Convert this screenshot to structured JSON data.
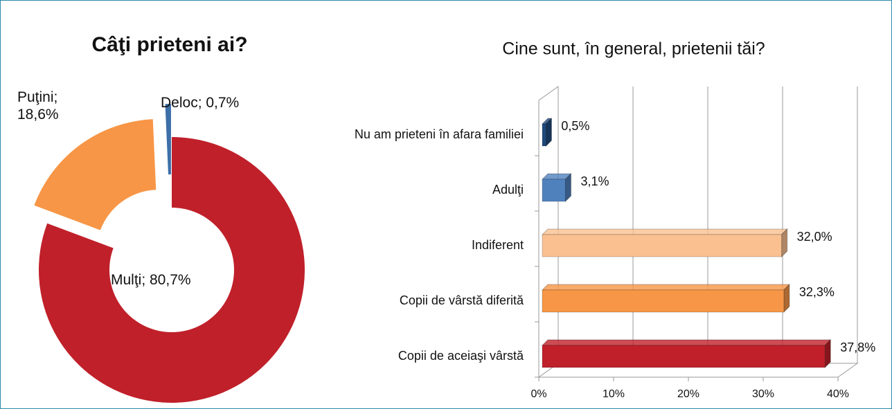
{
  "chart_data": [
    {
      "type": "donut",
      "title": "Câţi prieteni ai?",
      "values": [
        80.7,
        18.6,
        0.7
      ],
      "value_labels": [
        "Mulţi; 80,7%",
        "Puţini; 18,6%",
        "Deloc; 0,7%"
      ],
      "colors": [
        "#c0202a",
        "#f79646",
        "#3d6fa8"
      ]
    },
    {
      "type": "bar3d",
      "title": "Cine sunt, în general, prietenii tăi?",
      "categories": [
        "Nu am prieteni în afara familiei",
        "Adulţi",
        "Indiferent",
        "Copii de vârstă diferită",
        "Copii de aceiaşi vârstă"
      ],
      "values": [
        0.5,
        3.1,
        32.0,
        32.3,
        37.8
      ],
      "value_labels": [
        "0,5%",
        "3,1%",
        "32,0%",
        "32,3%",
        "37,8%"
      ],
      "colors": [
        "#1f497d",
        "#4f81bd",
        "#fac090",
        "#f79646",
        "#c0202a"
      ],
      "xlim": [
        0,
        40
      ],
      "xticks": [
        {
          "value": 0,
          "label": "0%"
        },
        {
          "value": 10,
          "label": "10%"
        },
        {
          "value": 20,
          "label": "20%"
        },
        {
          "value": 30,
          "label": "30%"
        },
        {
          "value": 40,
          "label": "40%"
        }
      ],
      "grid": true
    }
  ]
}
